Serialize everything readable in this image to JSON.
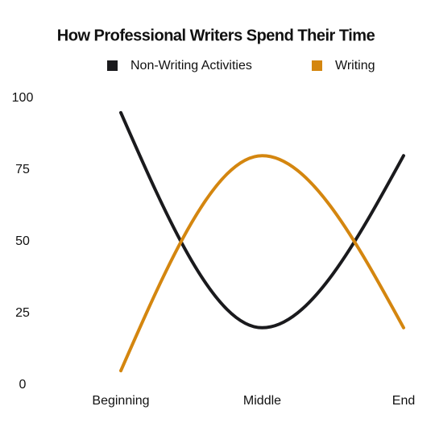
{
  "chart_data": {
    "type": "line",
    "title": "How Professional Writers Spend Their Time",
    "categories": [
      "Beginning",
      "Middle",
      "End"
    ],
    "series": [
      {
        "name": "Non-Writing Activities",
        "color": "#1a1a1d",
        "values": [
          95,
          20,
          80
        ]
      },
      {
        "name": "Writing",
        "color": "#d4860f",
        "values": [
          5,
          80,
          20
        ]
      }
    ],
    "ylim": [
      0,
      100
    ],
    "yticks": [
      0,
      25,
      50,
      75,
      100
    ],
    "smooth": true,
    "legend": "top"
  }
}
